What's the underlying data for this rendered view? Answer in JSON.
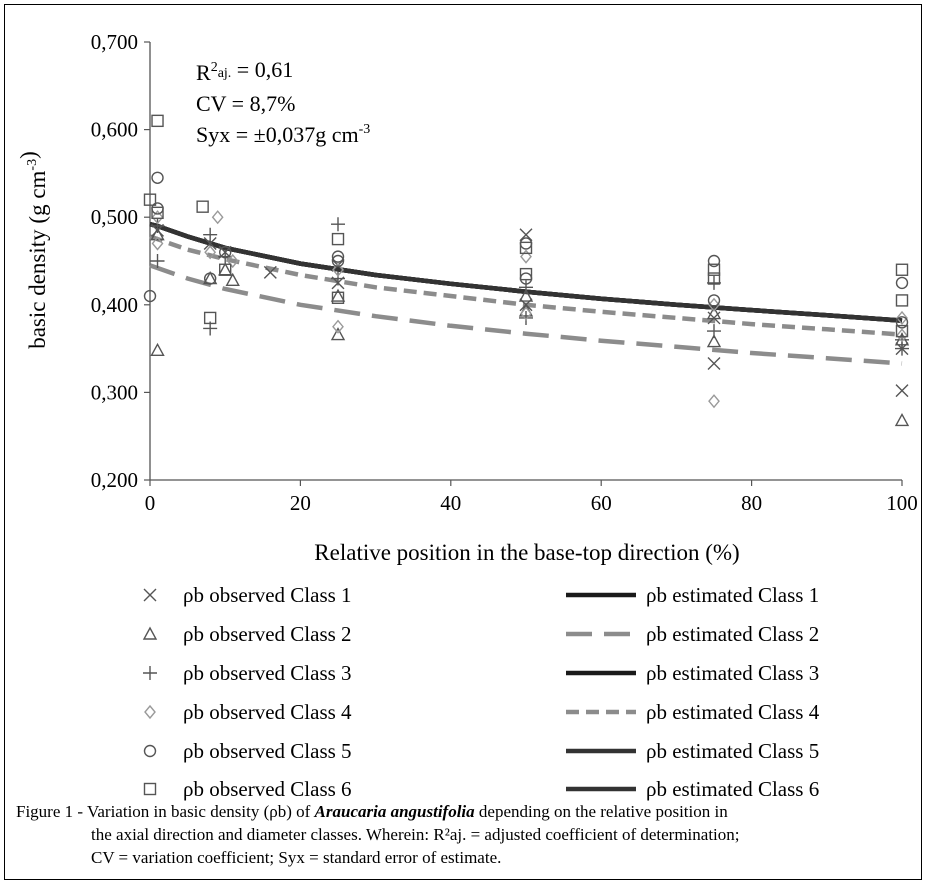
{
  "chart_data": {
    "type": "scatter",
    "title": "",
    "xlabel": "Relative position in the base-top direction (%)",
    "ylabel": "basic density (g cm⁻³)",
    "xlim": [
      0,
      100
    ],
    "ylim": [
      0.2,
      0.7
    ],
    "x_ticks": [
      "0",
      "20",
      "40",
      "60",
      "80",
      "100"
    ],
    "y_ticks": [
      "0,200",
      "0,300",
      "0,400",
      "0,500",
      "0,600",
      "0,700"
    ],
    "grid": false,
    "legend_position": "bottom",
    "stats": {
      "r2_line": "R²aj. = 0,61",
      "cv_line": "CV = 8,7%",
      "syx_line": "Syx = ±0,037g cm⁻³"
    },
    "observed": [
      {
        "name": "ρb observed Class 1",
        "marker": "x",
        "points": [
          [
            1,
            0.485
          ],
          [
            8,
            0.47
          ],
          [
            10,
            0.46
          ],
          [
            16,
            0.437
          ],
          [
            25,
            0.445
          ],
          [
            25,
            0.425
          ],
          [
            50,
            0.48
          ],
          [
            50,
            0.4
          ],
          [
            75,
            0.333
          ],
          [
            75,
            0.385
          ],
          [
            100,
            0.302
          ],
          [
            100,
            0.35
          ]
        ]
      },
      {
        "name": "ρb observed Class 2",
        "marker": "triangle",
        "points": [
          [
            1,
            0.348
          ],
          [
            1,
            0.48
          ],
          [
            8,
            0.43
          ],
          [
            10,
            0.44
          ],
          [
            11,
            0.428
          ],
          [
            25,
            0.366
          ],
          [
            25,
            0.41
          ],
          [
            50,
            0.393
          ],
          [
            50,
            0.41
          ],
          [
            75,
            0.358
          ],
          [
            75,
            0.39
          ],
          [
            100,
            0.268
          ],
          [
            100,
            0.36
          ]
        ]
      },
      {
        "name": "ρb observed Class 3",
        "marker": "plus",
        "points": [
          [
            1,
            0.45
          ],
          [
            1,
            0.49
          ],
          [
            8,
            0.373
          ],
          [
            8,
            0.48
          ],
          [
            10,
            0.455
          ],
          [
            25,
            0.492
          ],
          [
            25,
            0.43
          ],
          [
            50,
            0.385
          ],
          [
            50,
            0.42
          ],
          [
            75,
            0.37
          ],
          [
            75,
            0.425
          ],
          [
            100,
            0.36
          ],
          [
            100,
            0.35
          ]
        ]
      },
      {
        "name": "ρb observed Class 4",
        "marker": "diamond",
        "points": [
          [
            1,
            0.47
          ],
          [
            1,
            0.5
          ],
          [
            8,
            0.46
          ],
          [
            9,
            0.5
          ],
          [
            11,
            0.45
          ],
          [
            25,
            0.375
          ],
          [
            25,
            0.44
          ],
          [
            50,
            0.455
          ],
          [
            50,
            0.39
          ],
          [
            75,
            0.29
          ],
          [
            75,
            0.4
          ],
          [
            100,
            0.385
          ],
          [
            100,
            0.365
          ]
        ]
      },
      {
        "name": "ρb observed Class 5",
        "marker": "circle",
        "points": [
          [
            0,
            0.41
          ],
          [
            1,
            0.545
          ],
          [
            1,
            0.51
          ],
          [
            8,
            0.43
          ],
          [
            10,
            0.46
          ],
          [
            25,
            0.455
          ],
          [
            25,
            0.45
          ],
          [
            50,
            0.43
          ],
          [
            50,
            0.47
          ],
          [
            75,
            0.45
          ],
          [
            75,
            0.405
          ],
          [
            100,
            0.425
          ],
          [
            100,
            0.38
          ]
        ]
      },
      {
        "name": "ρb observed Class 6",
        "marker": "square",
        "points": [
          [
            1,
            0.61
          ],
          [
            0,
            0.52
          ],
          [
            1,
            0.505
          ],
          [
            8,
            0.385
          ],
          [
            7,
            0.512
          ],
          [
            10,
            0.44
          ],
          [
            25,
            0.475
          ],
          [
            25,
            0.408
          ],
          [
            50,
            0.465
          ],
          [
            50,
            0.435
          ],
          [
            75,
            0.44
          ],
          [
            75,
            0.43
          ],
          [
            100,
            0.44
          ],
          [
            100,
            0.405
          ],
          [
            100,
            0.37
          ]
        ]
      }
    ],
    "estimated": [
      {
        "name": "ρb estimated Class 1",
        "style": "solid-black",
        "points": [
          [
            0,
            0.492
          ],
          [
            1,
            0.49
          ],
          [
            5,
            0.478
          ],
          [
            10,
            0.465
          ],
          [
            20,
            0.447
          ],
          [
            30,
            0.434
          ],
          [
            40,
            0.424
          ],
          [
            50,
            0.415
          ],
          [
            60,
            0.407
          ],
          [
            70,
            0.4
          ],
          [
            80,
            0.394
          ],
          [
            90,
            0.388
          ],
          [
            100,
            0.382
          ]
        ]
      },
      {
        "name": "ρb estimated Class 2",
        "style": "dash-gray-long",
        "points": [
          [
            0,
            0.445
          ],
          [
            1,
            0.442
          ],
          [
            5,
            0.43
          ],
          [
            10,
            0.418
          ],
          [
            20,
            0.4
          ],
          [
            30,
            0.387
          ],
          [
            40,
            0.376
          ],
          [
            50,
            0.367
          ],
          [
            60,
            0.359
          ],
          [
            70,
            0.352
          ],
          [
            80,
            0.345
          ],
          [
            90,
            0.339
          ],
          [
            100,
            0.333
          ]
        ]
      },
      {
        "name": "ρb estimated Class 3",
        "style": "solid-black",
        "points": [
          [
            0,
            0.492
          ],
          [
            1,
            0.49
          ],
          [
            5,
            0.478
          ],
          [
            10,
            0.465
          ],
          [
            20,
            0.447
          ],
          [
            30,
            0.434
          ],
          [
            40,
            0.424
          ],
          [
            50,
            0.415
          ],
          [
            60,
            0.407
          ],
          [
            70,
            0.4
          ],
          [
            80,
            0.394
          ],
          [
            90,
            0.388
          ],
          [
            100,
            0.382
          ]
        ]
      },
      {
        "name": "ρb estimated Class 4",
        "style": "dash-gray-short",
        "points": [
          [
            0,
            0.478
          ],
          [
            1,
            0.475
          ],
          [
            5,
            0.463
          ],
          [
            10,
            0.452
          ],
          [
            20,
            0.434
          ],
          [
            30,
            0.42
          ],
          [
            40,
            0.41
          ],
          [
            50,
            0.4
          ],
          [
            60,
            0.392
          ],
          [
            70,
            0.385
          ],
          [
            80,
            0.378
          ],
          [
            90,
            0.372
          ],
          [
            100,
            0.366
          ]
        ]
      },
      {
        "name": "ρb estimated Class 5",
        "style": "solid-darkgray",
        "points": [
          [
            0,
            0.492
          ],
          [
            1,
            0.49
          ],
          [
            5,
            0.478
          ],
          [
            10,
            0.465
          ],
          [
            20,
            0.447
          ],
          [
            30,
            0.434
          ],
          [
            40,
            0.424
          ],
          [
            50,
            0.415
          ],
          [
            60,
            0.407
          ],
          [
            70,
            0.4
          ],
          [
            80,
            0.394
          ],
          [
            90,
            0.388
          ],
          [
            100,
            0.382
          ]
        ]
      },
      {
        "name": "ρb estimated Class 6",
        "style": "solid-darkgray",
        "points": [
          [
            0,
            0.492
          ],
          [
            1,
            0.49
          ],
          [
            5,
            0.478
          ],
          [
            10,
            0.465
          ],
          [
            20,
            0.447
          ],
          [
            30,
            0.434
          ],
          [
            40,
            0.424
          ],
          [
            50,
            0.415
          ],
          [
            60,
            0.407
          ],
          [
            70,
            0.4
          ],
          [
            80,
            0.394
          ],
          [
            90,
            0.388
          ],
          [
            100,
            0.382
          ]
        ]
      }
    ],
    "colors": {
      "marker": "#555555",
      "solid_black": "#1a1a1a",
      "solid_darkgray": "#333333",
      "dash_gray": "#8c8c8c"
    }
  },
  "caption": {
    "prefix": "Figure 1 - Variation in basic density (ρb) of ",
    "species": "Araucaria angustifolia",
    "line1_rest": " depending on the relative position in",
    "line2": "the axial direction and diameter classes. Wherein: R²aj. = adjusted coefficient of determination;",
    "line3": "CV = variation coefficient; Syx = standard error of estimate."
  }
}
